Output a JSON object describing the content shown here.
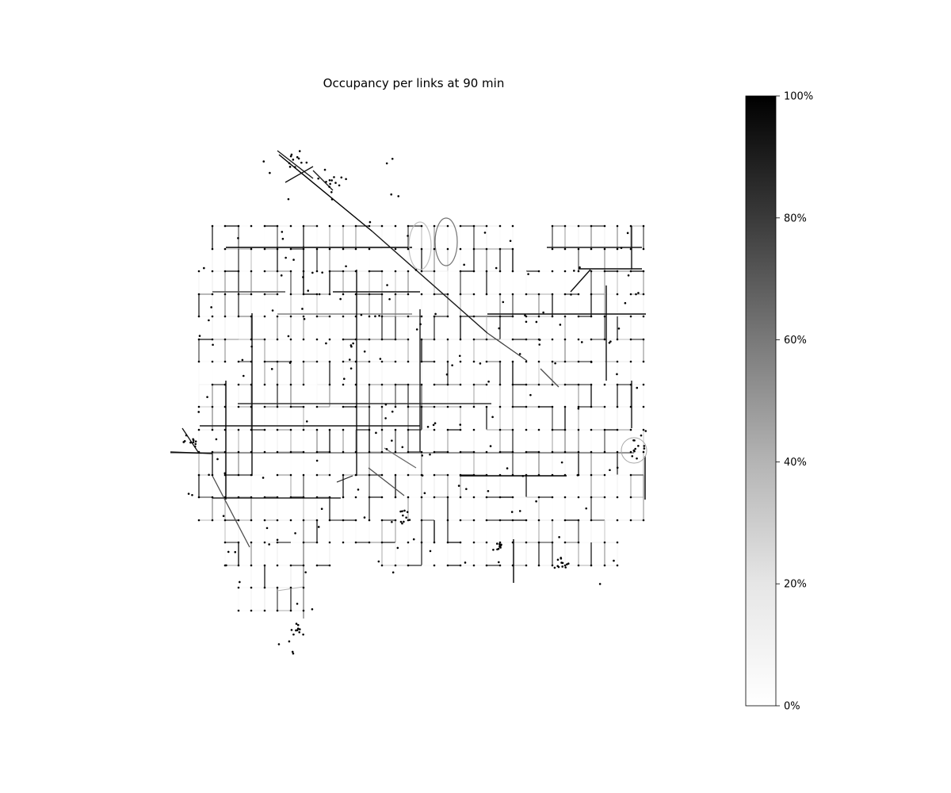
{
  "chart_data": {
    "type": "network",
    "title": "Occupancy per links at 90 min",
    "colorbar": {
      "ticks": [
        "0%",
        "20%",
        "40%",
        "60%",
        "80%",
        "100%"
      ],
      "range": [
        0,
        100
      ],
      "colormap": "Greys",
      "color_low": "#ffffff",
      "color_high": "#000000"
    },
    "network": {
      "node_color": "#000000",
      "edge_colors_by_occupancy": "greyscale",
      "grid": false,
      "axes_visible": false
    }
  }
}
